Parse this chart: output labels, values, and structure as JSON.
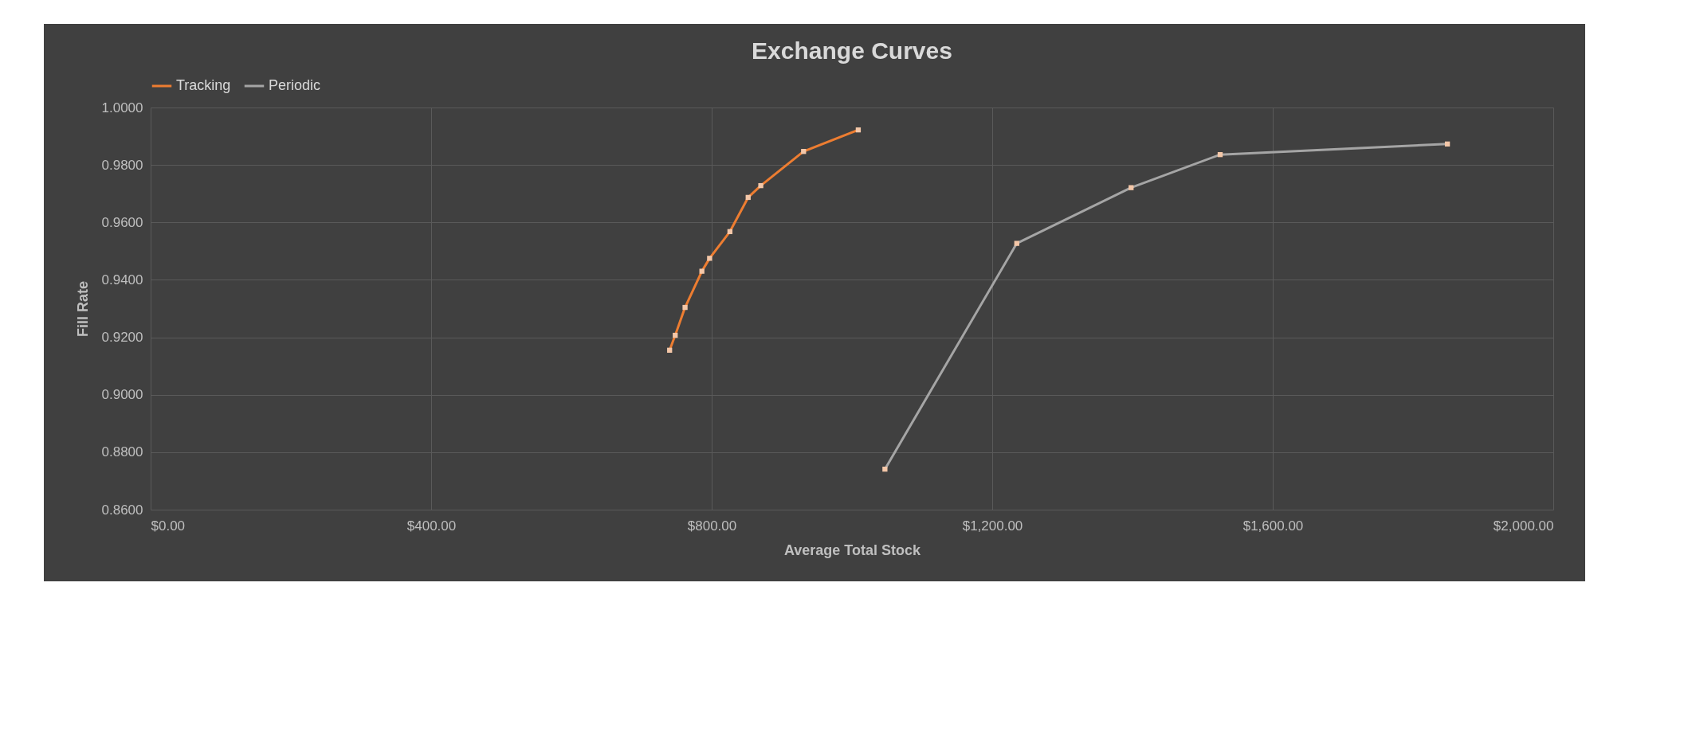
{
  "chart_data": {
    "type": "line",
    "title": "Exchange Curves",
    "xlabel": "Average Total Stock",
    "ylabel": "Fill Rate",
    "legend": "top",
    "grid": true,
    "marker": "square",
    "line_style": "solid",
    "xlim": [
      0,
      2000
    ],
    "xticks": [
      {
        "value": 0,
        "label": "$0.00"
      },
      {
        "value": 400,
        "label": "$400.00"
      },
      {
        "value": 800,
        "label": "$800.00"
      },
      {
        "value": 1200,
        "label": "$1,200.00"
      },
      {
        "value": 1600,
        "label": "$1,600.00"
      },
      {
        "value": 2000,
        "label": "$2,000.00"
      }
    ],
    "ylim": [
      0.86,
      1.0
    ],
    "yticks": [
      {
        "value": 0.86,
        "label": "0.8600"
      },
      {
        "value": 0.88,
        "label": "0.8800"
      },
      {
        "value": 0.9,
        "label": "0.9000"
      },
      {
        "value": 0.92,
        "label": "0.9200"
      },
      {
        "value": 0.94,
        "label": "0.9400"
      },
      {
        "value": 0.96,
        "label": "0.9600"
      },
      {
        "value": 0.98,
        "label": "0.9800"
      },
      {
        "value": 1.0,
        "label": "1.0000"
      }
    ],
    "series": [
      {
        "name": "Tracking",
        "color": "#ed7d31",
        "x": [
          740,
          748,
          762,
          786,
          797,
          826,
          852,
          870,
          931,
          1009
        ],
        "values": [
          0.9155,
          0.9207,
          0.9304,
          0.943,
          0.9475,
          0.9568,
          0.9687,
          0.9728,
          0.9847,
          0.9922
        ]
      },
      {
        "name": "Periodic",
        "color": "#a5a5a5",
        "x": [
          1047,
          1235,
          1398,
          1525,
          1849
        ],
        "values": [
          0.8741,
          0.9527,
          0.9721,
          0.9836,
          0.9873
        ]
      }
    ]
  }
}
